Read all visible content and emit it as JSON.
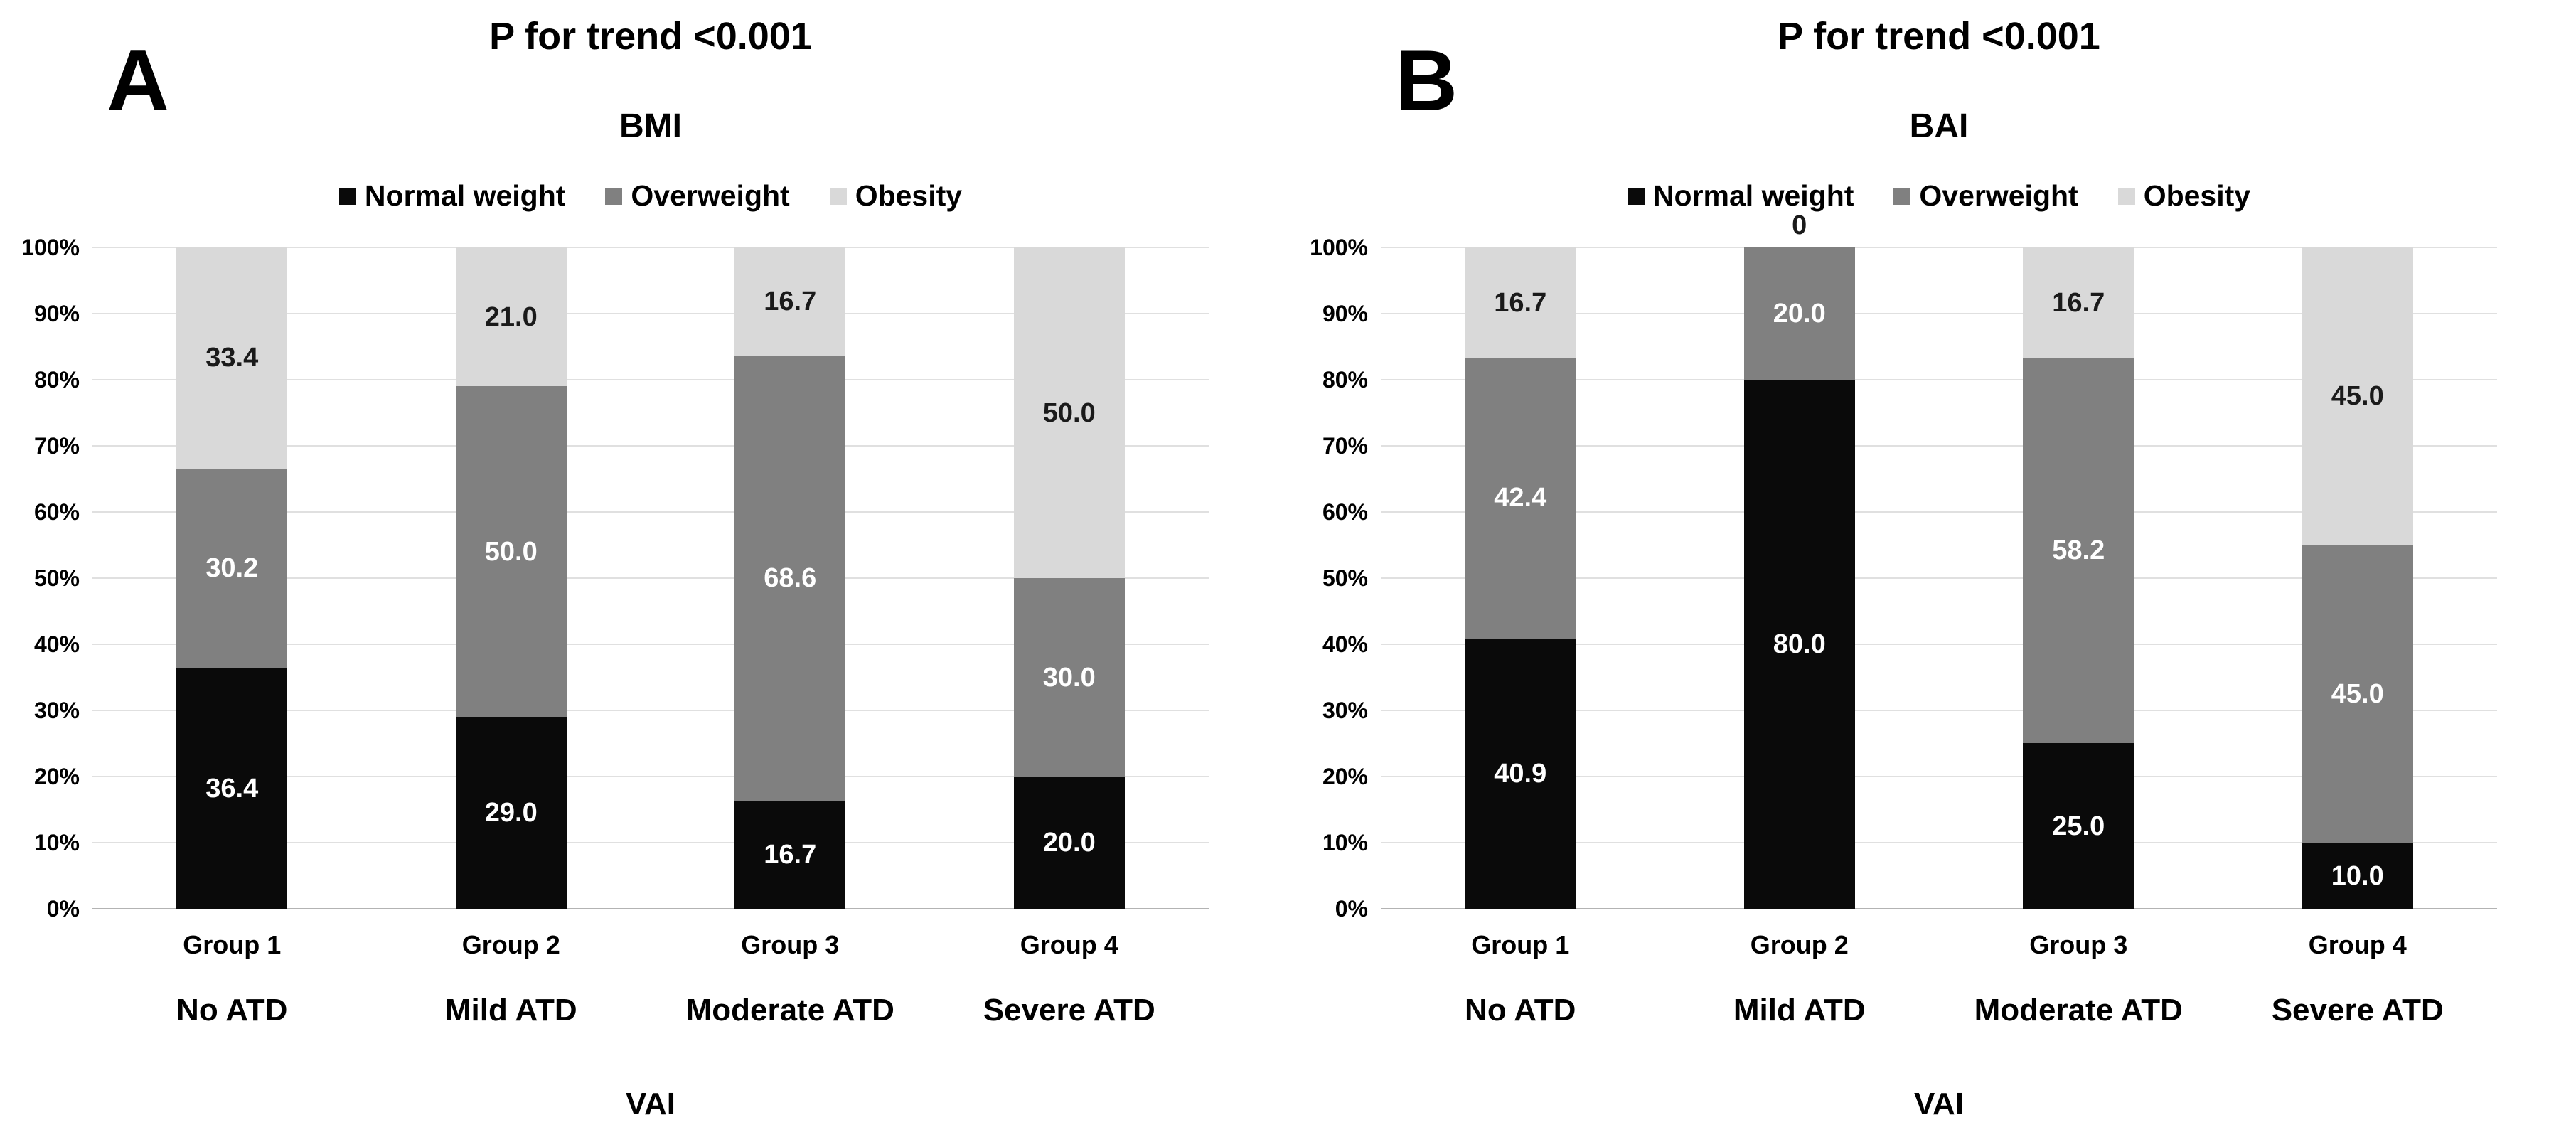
{
  "chart_data": [
    {
      "type": "bar",
      "variant": "stacked-100pct-column",
      "panel_letter": "A",
      "title": "P for trend <0.001",
      "subtitle": "BMI",
      "xlabel": "VAI",
      "legend_position": "top",
      "grid": true,
      "grid_color": "#e0e0e0",
      "axis_line_color": "#b3b3b3",
      "zero_label_color": "#1a1a1a",
      "ylim": [
        0,
        100
      ],
      "ytick_labels": [
        "0%",
        "10%",
        "20%",
        "30%",
        "40%",
        "50%",
        "60%",
        "70%",
        "80%",
        "90%",
        "100%"
      ],
      "categories": [
        "Group 1",
        "Group 2",
        "Group 3",
        "Group 4"
      ],
      "category_sublabels": [
        "No ATD",
        "Mild ATD",
        "Moderate ATD",
        "Severe ATD"
      ],
      "series": [
        {
          "name": "Normal weight",
          "color": "#0a0a0a",
          "label_color": "#ffffff",
          "values": [
            36.4,
            29.0,
            16.7,
            20.0
          ],
          "labels": [
            "36.4",
            "29.0",
            "16.7",
            "20.0"
          ]
        },
        {
          "name": "Overweight",
          "color": "#808080",
          "label_color": "#ffffff",
          "values": [
            30.2,
            50.0,
            68.6,
            30.0
          ],
          "labels": [
            "30.2",
            "50.0",
            "68.6",
            "30.0"
          ]
        },
        {
          "name": "Obesity",
          "color": "#d9d9d9",
          "label_color": "#1a1a1a",
          "values": [
            33.4,
            21.0,
            16.7,
            50.0
          ],
          "labels": [
            "33.4",
            "21.0",
            "16.7",
            "50.0"
          ]
        }
      ]
    },
    {
      "type": "bar",
      "variant": "stacked-100pct-column",
      "panel_letter": "B",
      "title": "P for trend <0.001",
      "subtitle": "BAI",
      "xlabel": "VAI",
      "legend_position": "top",
      "grid": true,
      "grid_color": "#e0e0e0",
      "axis_line_color": "#b3b3b3",
      "zero_label_color": "#1a1a1a",
      "ylim": [
        0,
        100
      ],
      "ytick_labels": [
        "0%",
        "10%",
        "20%",
        "30%",
        "40%",
        "50%",
        "60%",
        "70%",
        "80%",
        "90%",
        "100%"
      ],
      "categories": [
        "Group 1",
        "Group 2",
        "Group 3",
        "Group 4"
      ],
      "category_sublabels": [
        "No ATD",
        "Mild ATD",
        "Moderate ATD",
        "Severe ATD"
      ],
      "series": [
        {
          "name": "Normal weight",
          "color": "#0a0a0a",
          "label_color": "#ffffff",
          "values": [
            40.9,
            80.0,
            25.0,
            10.0
          ],
          "labels": [
            "40.9",
            "80.0",
            "25.0",
            "10.0"
          ]
        },
        {
          "name": "Overweight",
          "color": "#808080",
          "label_color": "#ffffff",
          "values": [
            42.4,
            20.0,
            58.2,
            45.0
          ],
          "labels": [
            "42.4",
            "20.0",
            "58.2",
            "45.0"
          ]
        },
        {
          "name": "Obesity",
          "color": "#d9d9d9",
          "label_color": "#1a1a1a",
          "values": [
            16.7,
            0,
            16.7,
            45.0
          ],
          "labels": [
            "16.7",
            "0",
            "16.7",
            "45.0"
          ]
        }
      ]
    }
  ]
}
